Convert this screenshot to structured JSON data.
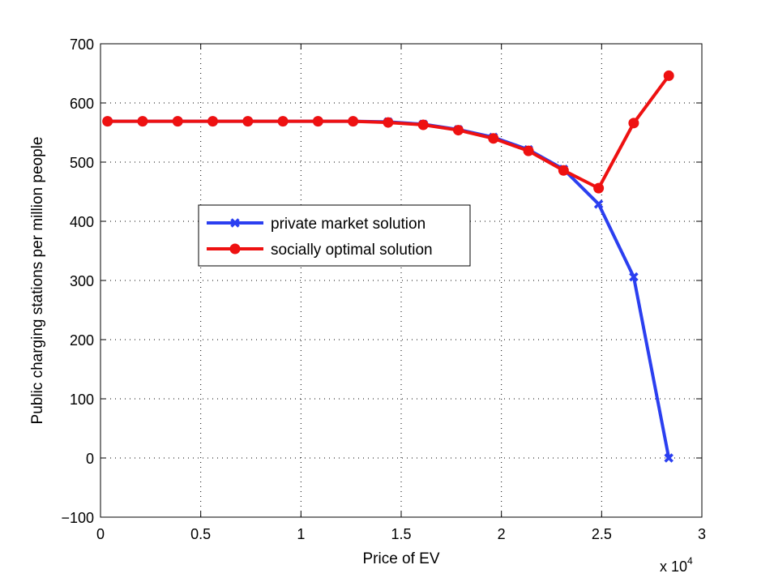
{
  "chart_data": {
    "type": "line",
    "title": "",
    "xlabel": "Price of EV",
    "ylabel": "Public charging stations per million people",
    "x_multiplier_label": "x 10",
    "x_multiplier_exp": "4",
    "xlim": [
      0,
      3
    ],
    "ylim": [
      -100,
      700
    ],
    "x_ticks": [
      0,
      0.5,
      1,
      1.5,
      2,
      2.5,
      3
    ],
    "x_tick_labels": [
      "0",
      "0.5",
      "1",
      "1.5",
      "2",
      "2.5",
      "3"
    ],
    "y_ticks": [
      -100,
      0,
      100,
      200,
      300,
      400,
      500,
      600,
      700
    ],
    "y_tick_labels": [
      "−100",
      "0",
      "100",
      "200",
      "300",
      "400",
      "500",
      "600",
      "700"
    ],
    "grid": true,
    "legend_position": "center-left",
    "x": [
      0.035,
      0.21,
      0.385,
      0.56,
      0.735,
      0.91,
      1.085,
      1.26,
      1.435,
      1.61,
      1.785,
      1.96,
      2.135,
      2.31,
      2.485,
      2.66,
      2.835
    ],
    "series": [
      {
        "name": "private market solution",
        "color": "#2b3ff0",
        "marker": "x",
        "values": [
          569,
          569,
          569,
          569,
          569,
          569,
          569,
          569,
          568,
          564,
          555,
          542,
          521,
          488,
          429,
          306,
          0
        ]
      },
      {
        "name": "socially optimal solution",
        "color": "#ee1111",
        "marker": "circle",
        "values": [
          569,
          569,
          569,
          569,
          569,
          569,
          569,
          569,
          567,
          563,
          554,
          540,
          519,
          486,
          456,
          566,
          646
        ]
      }
    ]
  }
}
